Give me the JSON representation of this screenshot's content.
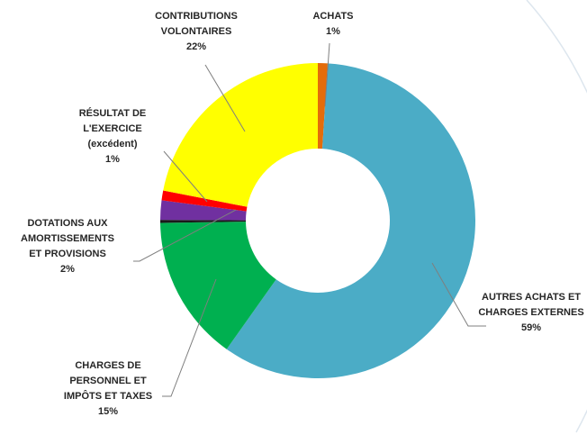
{
  "chart_data": {
    "type": "donut",
    "categories": [
      "ACHATS",
      "AUTRES ACHATS ET CHARGES EXTERNES",
      "CHARGES DE PERSONNEL ET IMPÔTS ET TAXES",
      null,
      "DOTATIONS AUX AMORTISSEMENTS ET PROVISIONS",
      "RÉSULTAT DE L'EXERCICE (excédent)",
      "CONTRIBUTIONS VOLONTAIRES"
    ],
    "values": [
      1,
      59,
      15,
      0.3,
      2,
      1,
      22
    ],
    "value_labels": [
      "1%",
      "59%",
      "15%",
      null,
      "2%",
      "1%",
      "22%"
    ],
    "colors": [
      "#e46c0a",
      "#4bacc6",
      "#00b050",
      "#1a1a1a",
      "#7030a0",
      "#ff0000",
      "#ffff00"
    ]
  }
}
